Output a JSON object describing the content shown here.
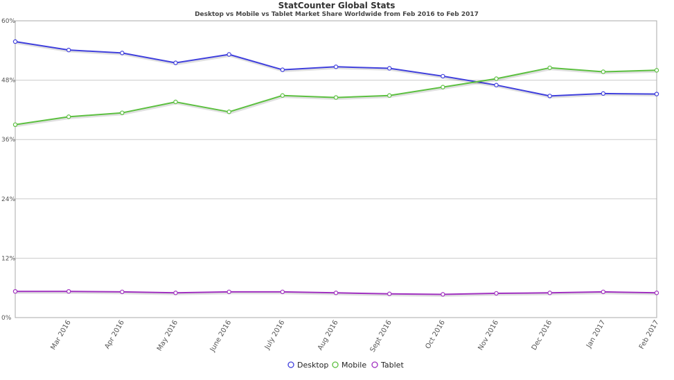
{
  "chart_data": {
    "type": "line",
    "title": "StatCounter Global Stats",
    "subtitle": "Desktop vs Mobile vs Tablet Market Share Worldwide from Feb 2016 to Feb 2017",
    "x_categories": [
      "Feb 2016",
      "Mar 2016",
      "Apr 2016",
      "May 2016",
      "June 2016",
      "July 2016",
      "Aug 2016",
      "Sept 2016",
      "Oct 2016",
      "Nov 2016",
      "Dec 2016",
      "Jan 2017",
      "Feb 2017"
    ],
    "x_tick_labels": [
      "",
      "Mar 2016",
      "Apr 2016",
      "May 2016",
      "June 2016",
      "July 2016",
      "Aug 2016",
      "Sept 2016",
      "Oct 2016",
      "Nov 2016",
      "Dec 2016",
      "Jan 2017",
      "Feb 2017"
    ],
    "y_ticks": [
      0,
      12,
      24,
      36,
      48,
      60
    ],
    "y_tick_labels": [
      "0%",
      "12%",
      "24%",
      "36%",
      "48%",
      "60%"
    ],
    "ylim": [
      0,
      60
    ],
    "grid": true,
    "legend_position": "bottom-center",
    "series": [
      {
        "name": "Desktop",
        "color": "#4040dd",
        "values": [
          55.8,
          54.1,
          53.5,
          51.5,
          53.2,
          50.1,
          50.7,
          50.4,
          48.8,
          47.0,
          44.8,
          45.3,
          45.2
        ]
      },
      {
        "name": "Mobile",
        "color": "#5cc040",
        "values": [
          39.0,
          40.6,
          41.4,
          43.6,
          41.6,
          44.9,
          44.5,
          44.9,
          46.6,
          48.3,
          50.5,
          49.7,
          50.0
        ]
      },
      {
        "name": "Tablet",
        "color": "#a030c0",
        "values": [
          5.3,
          5.3,
          5.2,
          5.0,
          5.2,
          5.2,
          5.0,
          4.8,
          4.7,
          4.9,
          5.0,
          5.2,
          5.0
        ]
      }
    ]
  }
}
